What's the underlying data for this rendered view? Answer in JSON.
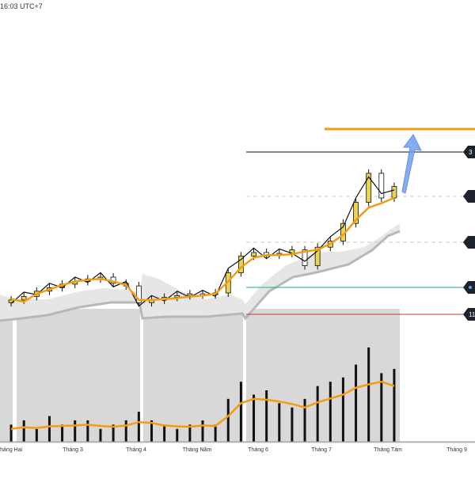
{
  "header": {
    "time_text": "16:03 UTC+7"
  },
  "colors": {
    "candle_up": "#e8d44d",
    "candle_down": "#ffffff",
    "candle_outline": "#111111",
    "ma_orange": "#f39c12",
    "zigzag": "#111111",
    "band_fill": "#d3d3d3",
    "band_line": "#b8b8b8",
    "volume": "#111111",
    "volume_ma": "#f39c12",
    "target_line": "#f39c12",
    "arrow": "#6f9ef0",
    "line_red": "#d32f2f",
    "line_teal": "#26a69a",
    "line_black": "#111111",
    "line_dashed": "#c8c8c8",
    "tag_bg": "#1e222d"
  },
  "chart_data": {
    "type": "candlestick",
    "title": "",
    "xlabel": "",
    "ylabel": "",
    "x_ticks": [
      "Tháng Hai",
      "Tháng 3",
      "Tháng 4",
      "Tháng Năm",
      "Tháng 6",
      "Tháng 7",
      "Tháng Tám",
      "Tháng 9"
    ],
    "price_tags": [
      {
        "text": "3",
        "kind": "solid-black"
      },
      {
        "text": "",
        "kind": "dashed"
      },
      {
        "text": "",
        "kind": "dashed"
      },
      {
        "text": "",
        "kind": "teal"
      },
      {
        "text": "11",
        "kind": "red"
      }
    ],
    "orange_ma_values": [
      10.0,
      9.7,
      10.6,
      11.1,
      11.6,
      12.0,
      12.2,
      12.3,
      12.0,
      11.6,
      9.9,
      9.9,
      10.0,
      10.1,
      10.3,
      10.4,
      10.6,
      12.0,
      13.6,
      14.7,
      15.0,
      15.0,
      15.1,
      15.4,
      15.6,
      16.3,
      17.3,
      19.0,
      20.4,
      20.9,
      21.5
    ],
    "candles_close": [
      9.9,
      10.3,
      10.9,
      11.3,
      11.7,
      12.0,
      12.3,
      12.5,
      11.8,
      11.5,
      9.6,
      9.9,
      10.2,
      10.4,
      10.6,
      10.5,
      10.7,
      13.0,
      14.9,
      15.3,
      15.0,
      15.2,
      15.6,
      13.8,
      15.9,
      16.6,
      18.6,
      21.0,
      24.3,
      21.5,
      22.8
    ],
    "volume_values": [
      4,
      5,
      3,
      6,
      4,
      5,
      5,
      3,
      4,
      5,
      7,
      5,
      4,
      3,
      4,
      5,
      4,
      10,
      14,
      11,
      12,
      9,
      8,
      10,
      13,
      14,
      15,
      18,
      22,
      16,
      17
    ],
    "volume_ma_values": [
      3.0,
      3.4,
      3.2,
      3.6,
      3.7,
      3.8,
      4.0,
      3.7,
      3.5,
      3.8,
      4.6,
      4.4,
      3.8,
      3.6,
      3.5,
      3.8,
      3.7,
      6.0,
      9.0,
      10.0,
      9.8,
      9.4,
      8.8,
      8.0,
      9.2,
      10.1,
      11.0,
      12.6,
      13.4,
      14.0,
      13.0
    ]
  }
}
